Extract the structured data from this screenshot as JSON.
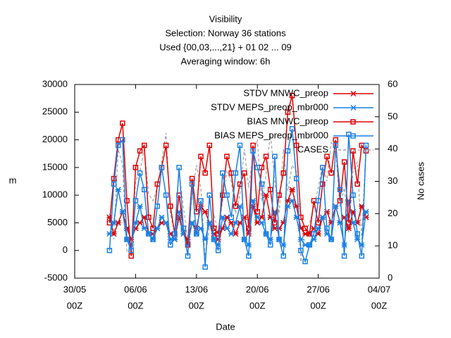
{
  "chart_data": {
    "type": "line",
    "title": "Visibility",
    "subtitles": [
      "Selection: Norway     36 stations",
      "Used {00,03,...,21} + 01 02 ... 09",
      "Averaging window:  6h"
    ],
    "xlabel": "Date",
    "ylabel": "m",
    "y2label": "No cases",
    "xlim": [
      "30/05 00Z",
      "04/07 00Z"
    ],
    "xticks": [
      {
        "value": "30/05 00Z",
        "label": [
          "30/05",
          "00Z"
        ]
      },
      {
        "value": "06/06 00Z",
        "label": [
          "06/06",
          "00Z"
        ]
      },
      {
        "value": "13/06 00Z",
        "label": [
          "13/06",
          "00Z"
        ]
      },
      {
        "value": "20/06 00Z",
        "label": [
          "20/06",
          "00Z"
        ]
      },
      {
        "value": "27/06 00Z",
        "label": [
          "27/06",
          "00Z"
        ]
      },
      {
        "value": "04/07 00Z",
        "label": [
          "04/07",
          "00Z"
        ]
      }
    ],
    "ylim": [
      -5000,
      30000
    ],
    "yticks": [
      -5000,
      0,
      5000,
      10000,
      15000,
      20000,
      25000,
      30000
    ],
    "y2lim": [
      0,
      60
    ],
    "y2ticks": [
      0,
      10,
      20,
      30,
      40,
      50,
      60
    ],
    "legend": "upper right",
    "x": [
      "03/06 00Z",
      "03/06 12Z",
      "04/06 00Z",
      "04/06 12Z",
      "05/06 00Z",
      "05/06 12Z",
      "06/06 00Z",
      "06/06 12Z",
      "07/06 00Z",
      "07/06 12Z",
      "08/06 00Z",
      "08/06 12Z",
      "09/06 00Z",
      "09/06 12Z",
      "10/06 00Z",
      "10/06 12Z",
      "11/06 00Z",
      "11/06 12Z",
      "12/06 00Z",
      "12/06 12Z",
      "13/06 00Z",
      "13/06 12Z",
      "14/06 00Z",
      "14/06 12Z",
      "15/06 00Z",
      "15/06 12Z",
      "16/06 00Z",
      "16/06 12Z",
      "17/06 00Z",
      "17/06 12Z",
      "18/06 00Z",
      "18/06 12Z",
      "19/06 00Z",
      "19/06 12Z",
      "20/06 00Z",
      "20/06 12Z",
      "21/06 00Z",
      "21/06 12Z",
      "22/06 00Z",
      "22/06 12Z",
      "23/06 00Z",
      "23/06 12Z",
      "24/06 00Z",
      "24/06 12Z",
      "25/06 00Z",
      "25/06 12Z",
      "26/06 00Z",
      "26/06 12Z",
      "27/06 00Z",
      "27/06 12Z",
      "28/06 00Z",
      "28/06 12Z",
      "29/06 00Z",
      "29/06 12Z",
      "30/06 00Z",
      "30/06 12Z",
      "01/07 00Z",
      "01/07 12Z",
      "02/07 00Z",
      "02/07 12Z"
    ],
    "series": [
      {
        "name": "CASES",
        "color": "#a0a0a0",
        "marker": "none",
        "dash": true,
        "axis": "y2",
        "values": [
          20,
          12,
          40,
          35,
          8,
          9,
          30,
          33,
          40,
          26,
          24,
          28,
          36,
          45,
          20,
          14,
          33,
          22,
          12,
          26,
          35,
          28,
          6,
          16,
          20,
          14,
          24,
          33,
          30,
          20,
          26,
          40,
          28,
          38,
          43,
          24,
          32,
          45,
          30,
          20,
          40,
          27,
          35,
          33,
          5,
          14,
          17,
          22,
          28,
          35,
          30,
          42,
          40,
          22,
          28,
          14,
          33,
          36,
          12,
          42
        ]
      },
      {
        "name": "STDV MNWC_preop",
        "color": "#e00000",
        "marker": "x",
        "dash": false,
        "values": [
          6000,
          3000,
          5000,
          7000,
          4000,
          2000,
          4000,
          5000,
          6000,
          3000,
          3000,
          4000,
          5000,
          5000,
          3000,
          2000,
          6000,
          3000,
          2000,
          5000,
          4000,
          8000,
          7000,
          5000,
          3000,
          2000,
          4000,
          6000,
          5000,
          3000,
          5000,
          6000,
          3000,
          8000,
          5000,
          6000,
          10000,
          6000,
          4000,
          4000,
          5000,
          9000,
          11000,
          8000,
          4000,
          3000,
          3000,
          4000,
          3000,
          6000,
          7000,
          5000,
          8000,
          5000,
          6000,
          4000,
          7000,
          5000,
          8000,
          6000
        ]
      },
      {
        "name": "STDV MEPS_preop_mbr000",
        "color": "#1a80e6",
        "marker": "x",
        "dash": false,
        "values": [
          3000,
          5000,
          11000,
          7000,
          2000,
          1000,
          5000,
          8000,
          4000,
          3000,
          2000,
          4000,
          6000,
          5000,
          2000,
          2000,
          7000,
          3000,
          1000,
          5000,
          3000,
          4000,
          2000,
          5000,
          2000,
          1000,
          6000,
          4000,
          3000,
          5000,
          8000,
          2000,
          1000,
          9000,
          6000,
          5000,
          3000,
          2000,
          7000,
          2000,
          1000,
          8000,
          9000,
          6000,
          2000,
          1000,
          1000,
          2000,
          4000,
          6000,
          3000,
          2000,
          8000,
          5000,
          1000,
          9000,
          5000,
          2000,
          1000,
          7000
        ]
      },
      {
        "name": "BIAS MNWC_preop",
        "color": "#e00000",
        "marker": "square",
        "dash": false,
        "values": [
          5000,
          13000,
          20000,
          23000,
          9000,
          -1000,
          15000,
          18000,
          19000,
          6000,
          4000,
          12000,
          15000,
          19000,
          8000,
          3000,
          10000,
          4000,
          1000,
          13000,
          7000,
          17000,
          14000,
          19000,
          4000,
          3000,
          10000,
          17000,
          14000,
          8000,
          12000,
          14000,
          4000,
          19000,
          7000,
          15000,
          17000,
          11000,
          5000,
          10000,
          14000,
          25000,
          28000,
          19000,
          6000,
          4000,
          3000,
          9000,
          5000,
          12000,
          17000,
          14000,
          20000,
          9000,
          16000,
          5000,
          18000,
          12000,
          19000,
          18000
        ]
      },
      {
        "name": "BIAS MEPS_preop_mbr000",
        "color": "#1a80e6",
        "marker": "square",
        "dash": false,
        "values": [
          0,
          12000,
          19000,
          20000,
          2000,
          0,
          9000,
          14000,
          11000,
          3000,
          2000,
          8000,
          15000,
          10000,
          1000,
          3000,
          15000,
          4000,
          -1000,
          12000,
          3000,
          9000,
          -3000,
          10000,
          2000,
          0,
          14000,
          10000,
          6000,
          14000,
          19000,
          2000,
          -1000,
          18000,
          15000,
          12000,
          3000,
          1000,
          17000,
          2000,
          -1000,
          18000,
          22000,
          13000,
          0,
          -2000,
          1000,
          3000,
          9000,
          15000,
          4000,
          2000,
          19000,
          11000,
          -1000,
          21000,
          10000,
          3000,
          -1000,
          19000
        ]
      }
    ]
  }
}
